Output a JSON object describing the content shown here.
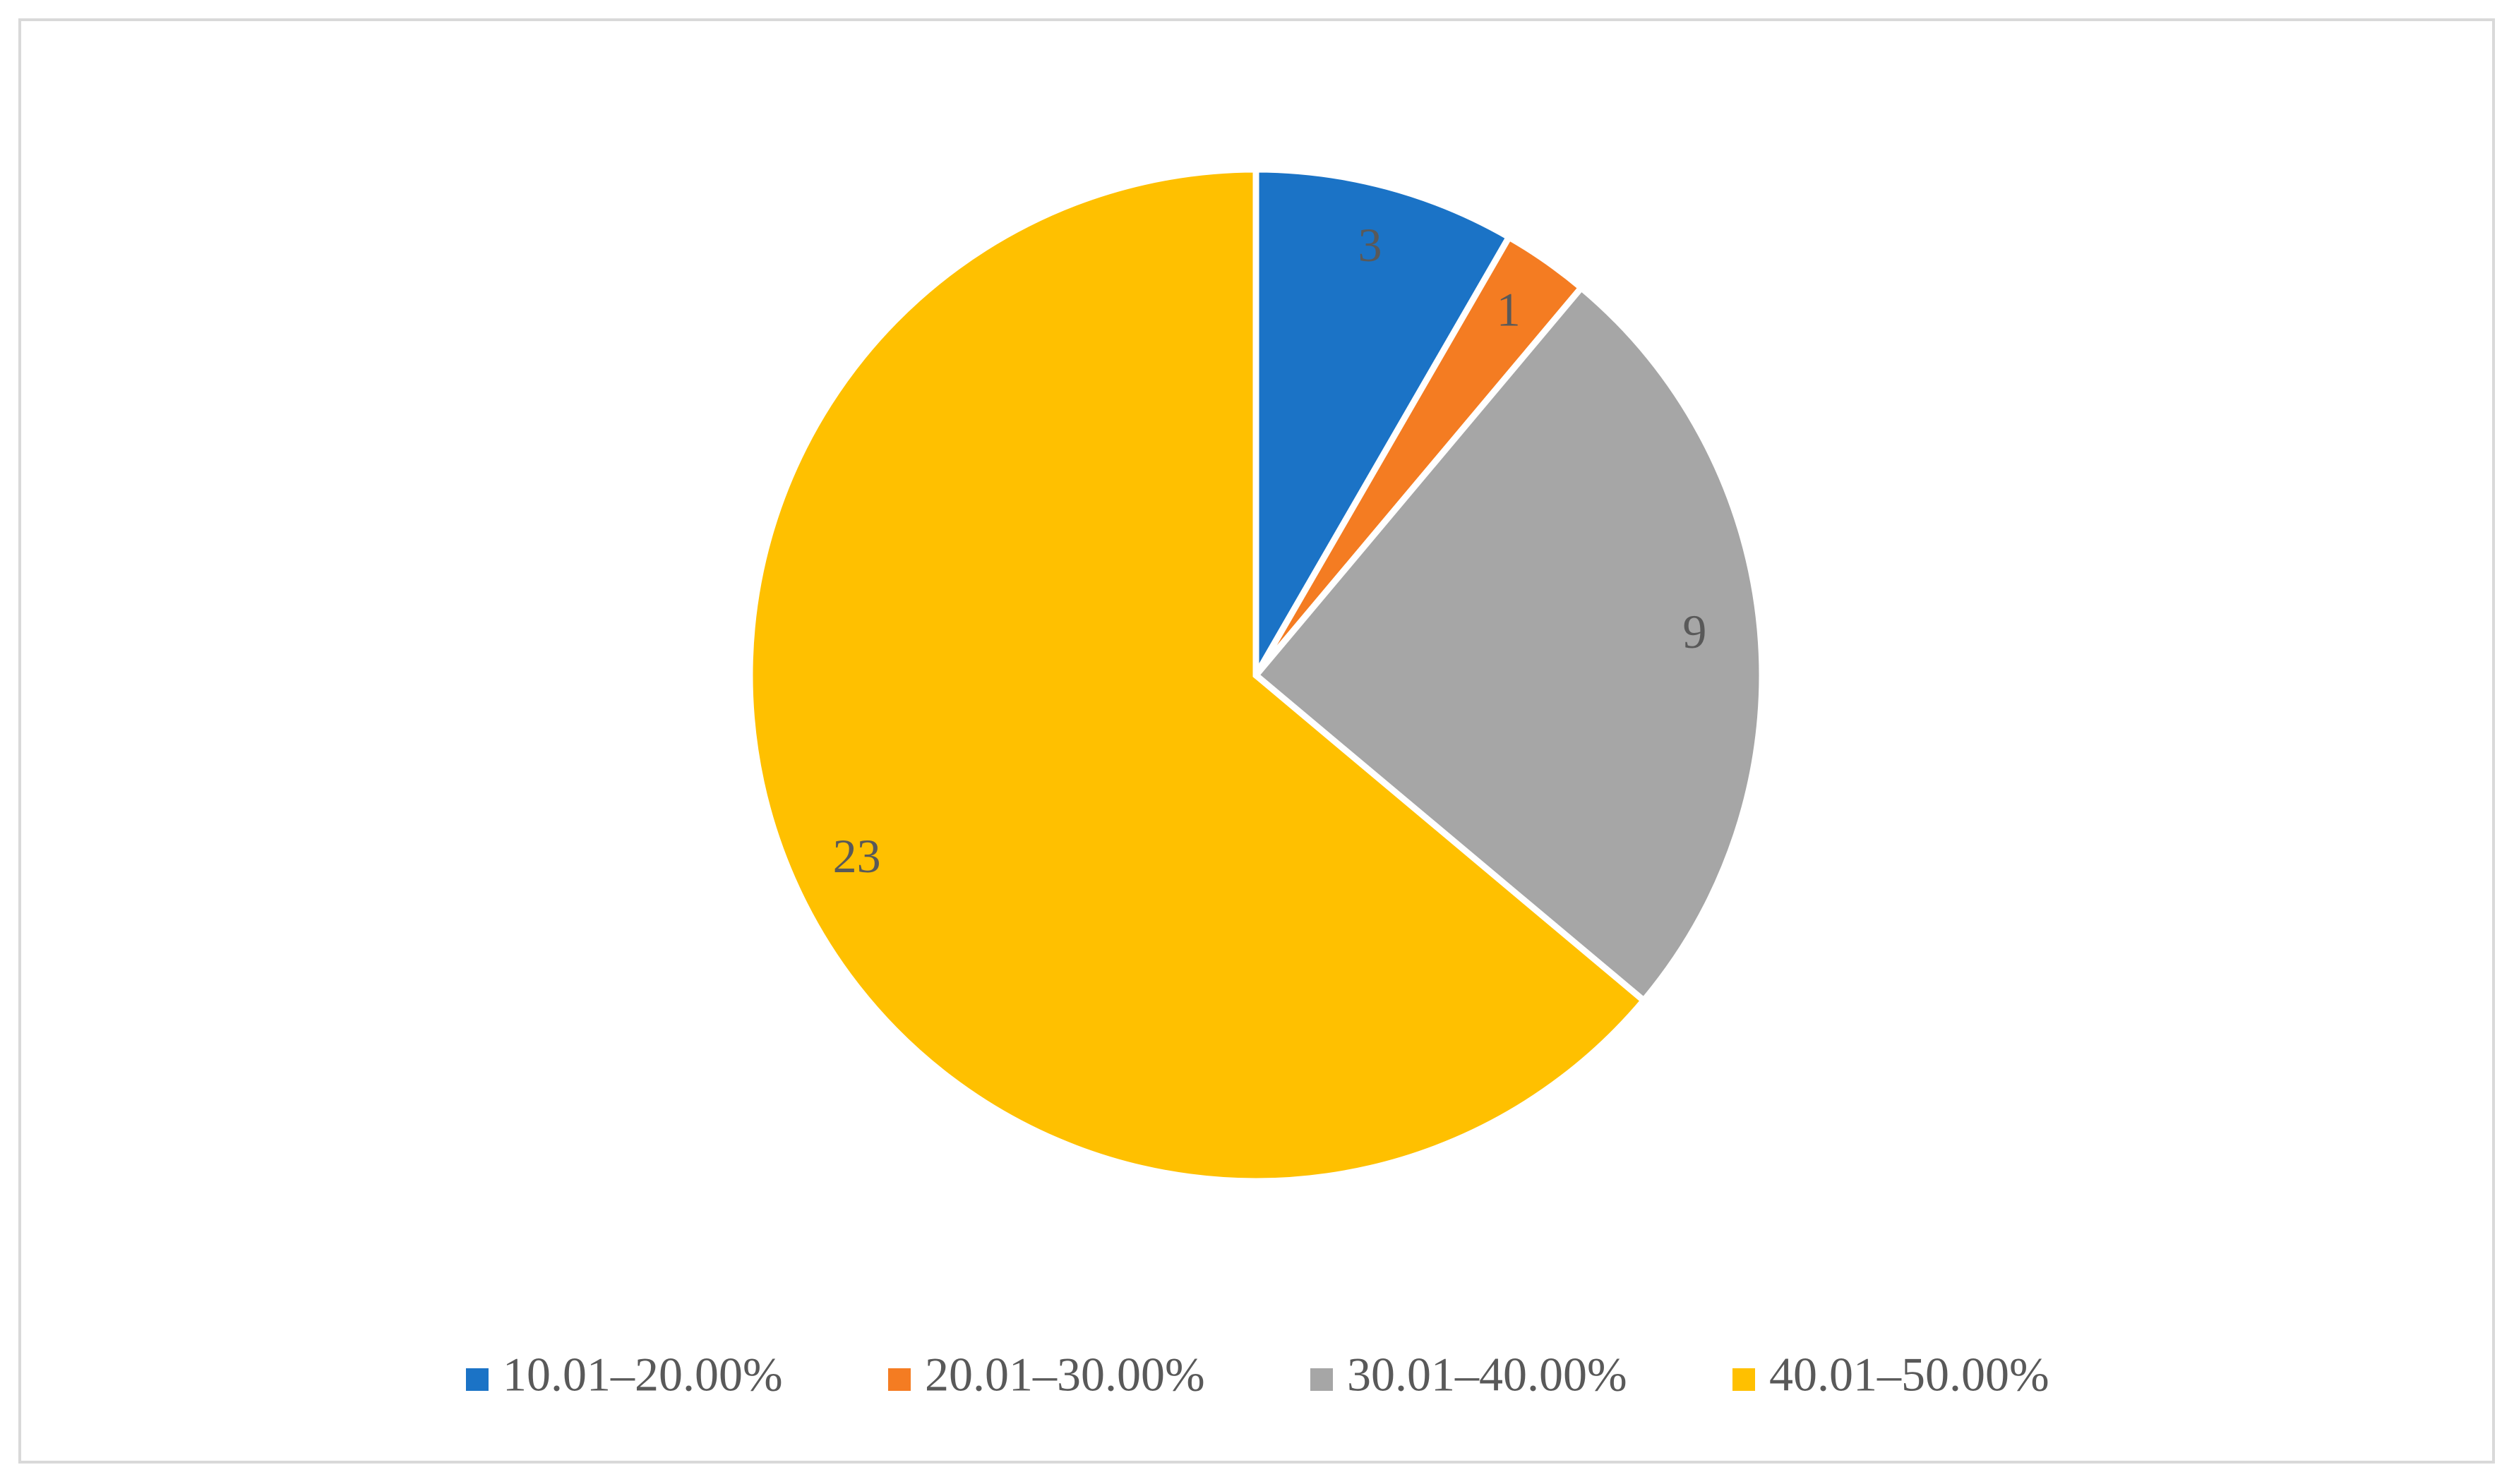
{
  "chart_data": {
    "type": "pie",
    "categories": [
      "10.01–20.00%",
      "20.01–30.00%",
      "30.01–40.00%",
      "40.01–50.00%"
    ],
    "values": [
      3,
      1,
      9,
      23
    ],
    "colors": [
      "#1b73c6",
      "#f47c22",
      "#a6a6a6",
      "#ffc000"
    ],
    "legend": "bottom"
  }
}
